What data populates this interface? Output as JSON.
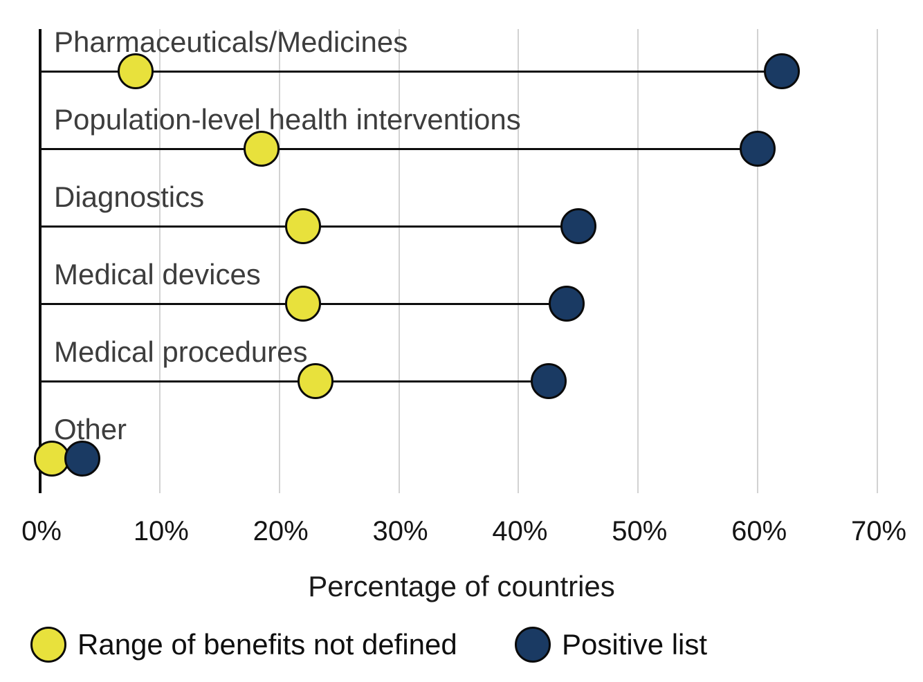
{
  "chart_data": {
    "type": "scatter",
    "variant": "dumbbell-lollipop",
    "title": "",
    "xlabel": "Percentage of countries",
    "ylabel": "",
    "xlim": [
      0,
      70
    ],
    "x_tick_values": [
      0,
      10,
      20,
      30,
      40,
      50,
      60,
      70
    ],
    "x_tick_labels": [
      "0%",
      "10%",
      "20%",
      "30%",
      "40%",
      "50%",
      "60%",
      "70%"
    ],
    "grid": "vertical-gridlines-on",
    "legend_position": "bottom",
    "categories": [
      "Pharmaceuticals/Medicines",
      "Population-level health interventions",
      "Diagnostics",
      "Medical devices",
      "Medical procedures",
      "Other"
    ],
    "series": [
      {
        "name": "Range of benefits not defined",
        "color": "#e8e13c",
        "values": [
          8,
          18.5,
          22,
          22,
          23,
          1
        ]
      },
      {
        "name": "Positive list",
        "color": "#1a3a63",
        "values": [
          62,
          60,
          45,
          44,
          42.5,
          3.5
        ]
      }
    ],
    "connector_color": "#0d0d0d",
    "marker_outline_color": "#0a0a0a",
    "gridline_color": "#d2d2d2",
    "axis_color": "#0d0d0d",
    "category_label_color": "#3d3d3d",
    "tick_label_color": "#141414"
  }
}
